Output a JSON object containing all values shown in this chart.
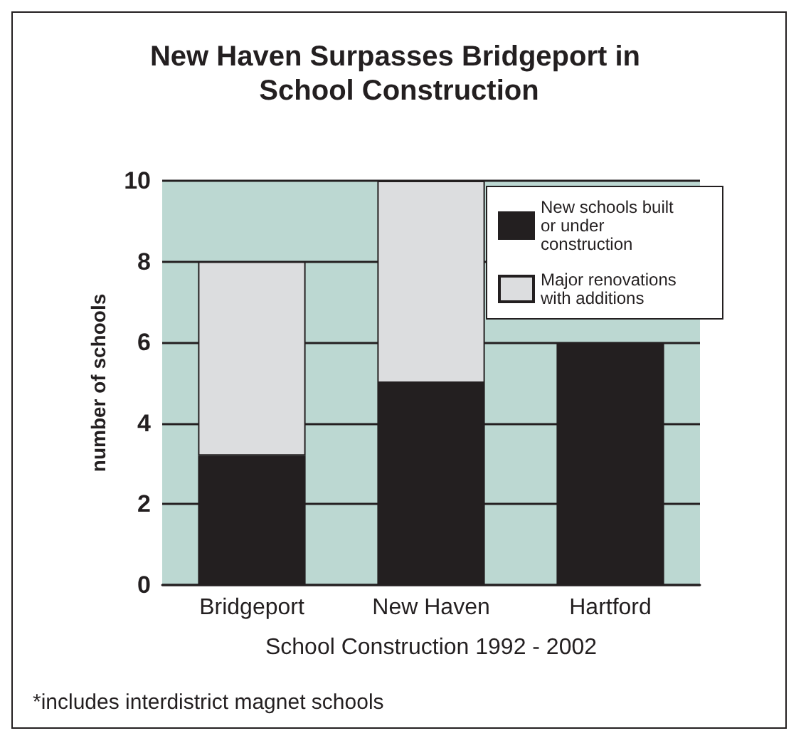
{
  "chart_data": {
    "type": "bar",
    "title": "New Haven Surpasses Bridgeport in School Construction",
    "xlabel": "School Construction 1992 - 2002",
    "ylabel": "number of schools",
    "categories": [
      "Bridgeport",
      "New Haven",
      "Hartford"
    ],
    "series": [
      {
        "name": "New schools built or under construction",
        "color": "#231f20",
        "values": [
          3.2,
          5,
          6
        ]
      },
      {
        "name": "Major renovations with additions",
        "color": "#dcdddf",
        "values": [
          4.8,
          5,
          0
        ]
      }
    ],
    "stacked": true,
    "ylim": [
      0,
      10
    ],
    "yticks": [
      0,
      2,
      4,
      6,
      8,
      10
    ],
    "grid": "y",
    "legend": "top right",
    "annotations": [
      "*includes interdistrict magnet schools"
    ]
  }
}
